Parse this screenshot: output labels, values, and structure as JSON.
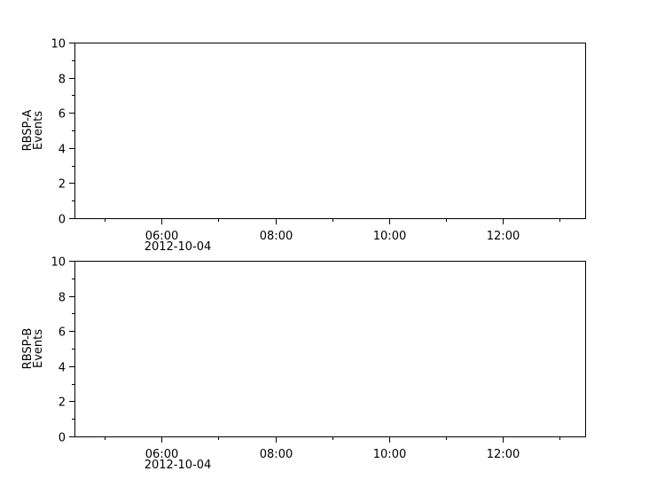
{
  "chart_data": [
    {
      "type": "line",
      "ylabel": [
        "RBSP-A",
        "Events"
      ],
      "ylim": [
        0,
        10
      ],
      "yticks": [
        0,
        2,
        4,
        6,
        8,
        10
      ],
      "yminor": [
        1,
        3,
        5,
        7,
        9
      ],
      "xlim": [
        "04:28",
        "13:27"
      ],
      "xticks": [
        "06:00",
        "08:00",
        "10:00",
        "12:00"
      ],
      "xminor": [
        "05:00",
        "07:00",
        "09:00",
        "11:00",
        "13:00"
      ],
      "xdate_label": "2012-10-04",
      "series": [],
      "grid": false
    },
    {
      "type": "line",
      "ylabel": [
        "RBSP-B",
        "Events"
      ],
      "ylim": [
        0,
        10
      ],
      "yticks": [
        0,
        2,
        4,
        6,
        8,
        10
      ],
      "yminor": [
        1,
        3,
        5,
        7,
        9
      ],
      "xlim": [
        "04:28",
        "13:27"
      ],
      "xticks": [
        "06:00",
        "08:00",
        "10:00",
        "12:00"
      ],
      "xminor": [
        "05:00",
        "07:00",
        "09:00",
        "11:00",
        "13:00"
      ],
      "xdate_label": "2012-10-04",
      "series": [],
      "grid": false
    }
  ]
}
